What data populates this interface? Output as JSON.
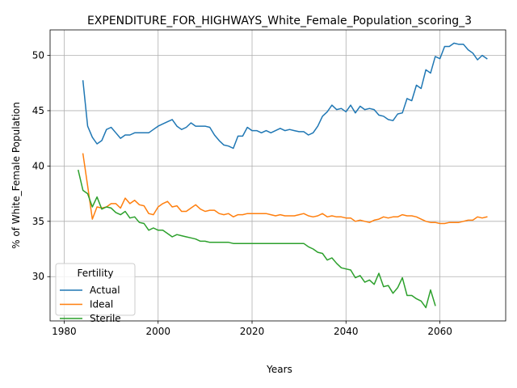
{
  "chart_data": {
    "type": "line",
    "title": "EXPENDITURE_FOR_HIGHWAYS_White_Female_Population_scoring_3",
    "xlabel": "Years",
    "ylabel": "% of White_Female Population",
    "xlim": [
      1977,
      2074
    ],
    "ylim": [
      26.0,
      52.3
    ],
    "xticks": [
      1980,
      2000,
      2020,
      2040,
      2060
    ],
    "yticks": [
      30,
      35,
      40,
      45,
      50
    ],
    "grid": true,
    "legend": {
      "title": "Fertility",
      "position": "lower-left",
      "entries": [
        "Actual",
        "Ideal",
        "Sterile"
      ]
    },
    "series": [
      {
        "name": "Actual",
        "color": "#1f77b4",
        "x": [
          1984,
          1985,
          1986,
          1987,
          1988,
          1989,
          1990,
          1991,
          1992,
          1993,
          1994,
          1995,
          1996,
          1997,
          1998,
          1999,
          2000,
          2001,
          2002,
          2003,
          2004,
          2005,
          2006,
          2007,
          2008,
          2009,
          2010,
          2011,
          2012,
          2013,
          2014,
          2015,
          2016,
          2017,
          2018,
          2019,
          2020,
          2021,
          2022,
          2023,
          2024,
          2025,
          2026,
          2027,
          2028,
          2029,
          2030,
          2031,
          2032,
          2033,
          2034,
          2035,
          2036,
          2037,
          2038,
          2039,
          2040,
          2041,
          2042,
          2043,
          2044,
          2045,
          2046,
          2047,
          2048,
          2049,
          2050,
          2051,
          2052,
          2053,
          2054,
          2055,
          2056,
          2057,
          2058,
          2059,
          2060,
          2061,
          2062,
          2063,
          2064,
          2065,
          2066,
          2067,
          2068,
          2069,
          2070
        ],
        "y": [
          47.7,
          43.6,
          42.6,
          42.0,
          42.3,
          43.3,
          43.5,
          43.0,
          42.5,
          42.8,
          42.8,
          43.0,
          43.0,
          43.0,
          43.0,
          43.3,
          43.6,
          43.8,
          44.0,
          44.2,
          43.6,
          43.3,
          43.5,
          43.9,
          43.6,
          43.6,
          43.6,
          43.5,
          42.8,
          42.3,
          41.9,
          41.8,
          41.6,
          42.7,
          42.7,
          43.5,
          43.2,
          43.2,
          43.0,
          43.2,
          43.0,
          43.2,
          43.4,
          43.2,
          43.3,
          43.2,
          43.1,
          43.1,
          42.8,
          43.0,
          43.6,
          44.5,
          44.9,
          45.5,
          45.1,
          45.2,
          44.9,
          45.5,
          44.8,
          45.4,
          45.1,
          45.2,
          45.1,
          44.6,
          44.5,
          44.2,
          44.1,
          44.7,
          44.8,
          46.1,
          45.9,
          47.3,
          47.0,
          48.7,
          48.4,
          49.9,
          49.7,
          50.8,
          50.8,
          51.1,
          51.0,
          51.0,
          50.5,
          50.2,
          49.6,
          50.0,
          49.7
        ]
      },
      {
        "name": "Ideal",
        "color": "#ff7f0e",
        "x": [
          1984,
          1985,
          1986,
          1987,
          1988,
          1989,
          1990,
          1991,
          1992,
          1993,
          1994,
          1995,
          1996,
          1997,
          1998,
          1999,
          2000,
          2001,
          2002,
          2003,
          2004,
          2005,
          2006,
          2007,
          2008,
          2009,
          2010,
          2011,
          2012,
          2013,
          2014,
          2015,
          2016,
          2017,
          2018,
          2019,
          2020,
          2021,
          2022,
          2023,
          2024,
          2025,
          2026,
          2027,
          2028,
          2029,
          2030,
          2031,
          2032,
          2033,
          2034,
          2035,
          2036,
          2037,
          2038,
          2039,
          2040,
          2041,
          2042,
          2043,
          2044,
          2045,
          2046,
          2047,
          2048,
          2049,
          2050,
          2051,
          2052,
          2053,
          2054,
          2055,
          2056,
          2057,
          2058,
          2059,
          2060,
          2061,
          2062,
          2063,
          2064,
          2065,
          2066,
          2067,
          2068,
          2069,
          2070
        ],
        "y": [
          41.1,
          38.2,
          35.2,
          36.3,
          36.2,
          36.3,
          36.6,
          36.6,
          36.2,
          37.1,
          36.6,
          36.9,
          36.5,
          36.4,
          35.7,
          35.6,
          36.3,
          36.6,
          36.8,
          36.3,
          36.4,
          35.9,
          35.9,
          36.2,
          36.5,
          36.1,
          35.9,
          36.0,
          36.0,
          35.7,
          35.6,
          35.7,
          35.4,
          35.6,
          35.6,
          35.7,
          35.7,
          35.7,
          35.7,
          35.7,
          35.6,
          35.5,
          35.6,
          35.5,
          35.5,
          35.5,
          35.6,
          35.7,
          35.5,
          35.4,
          35.5,
          35.7,
          35.4,
          35.5,
          35.4,
          35.4,
          35.3,
          35.3,
          35.0,
          35.1,
          35.0,
          34.9,
          35.1,
          35.2,
          35.4,
          35.3,
          35.4,
          35.4,
          35.6,
          35.5,
          35.5,
          35.4,
          35.2,
          35.0,
          34.9,
          34.9,
          34.8,
          34.8,
          34.9,
          34.9,
          34.9,
          35.0,
          35.1,
          35.1,
          35.4,
          35.3,
          35.4
        ]
      },
      {
        "name": "Sterile",
        "color": "#2ca02c",
        "x": [
          1983,
          1984,
          1985,
          1986,
          1987,
          1988,
          1989,
          1990,
          1991,
          1992,
          1993,
          1994,
          1995,
          1996,
          1997,
          1998,
          1999,
          2000,
          2001,
          2002,
          2003,
          2004,
          2005,
          2006,
          2007,
          2008,
          2009,
          2010,
          2011,
          2012,
          2013,
          2014,
          2015,
          2016,
          2017,
          2018,
          2019,
          2020,
          2021,
          2022,
          2023,
          2024,
          2025,
          2026,
          2027,
          2028,
          2029,
          2030,
          2031,
          2032,
          2033,
          2034,
          2035,
          2036,
          2037,
          2038,
          2039,
          2040,
          2041,
          2042,
          2043,
          2044,
          2045,
          2046,
          2047,
          2048,
          2049,
          2050,
          2051,
          2052,
          2053,
          2054,
          2055,
          2056,
          2057,
          2058,
          2059
        ],
        "y": [
          39.6,
          37.8,
          37.5,
          36.3,
          37.2,
          36.1,
          36.3,
          36.2,
          35.8,
          35.6,
          35.9,
          35.3,
          35.4,
          34.9,
          34.8,
          34.2,
          34.4,
          34.2,
          34.2,
          33.9,
          33.6,
          33.8,
          33.7,
          33.6,
          33.5,
          33.4,
          33.2,
          33.2,
          33.1,
          33.1,
          33.1,
          33.1,
          33.1,
          33.0,
          33.0,
          33.0,
          33.0,
          33.0,
          33.0,
          33.0,
          33.0,
          33.0,
          33.0,
          33.0,
          33.0,
          33.0,
          33.0,
          33.0,
          33.0,
          32.7,
          32.5,
          32.2,
          32.1,
          31.5,
          31.7,
          31.2,
          30.8,
          30.7,
          30.6,
          29.9,
          30.1,
          29.5,
          29.7,
          29.3,
          30.3,
          29.1,
          29.2,
          28.5,
          29.0,
          29.9,
          28.3,
          28.3,
          28.0,
          27.8,
          27.2,
          28.8,
          27.4
        ]
      }
    ]
  }
}
